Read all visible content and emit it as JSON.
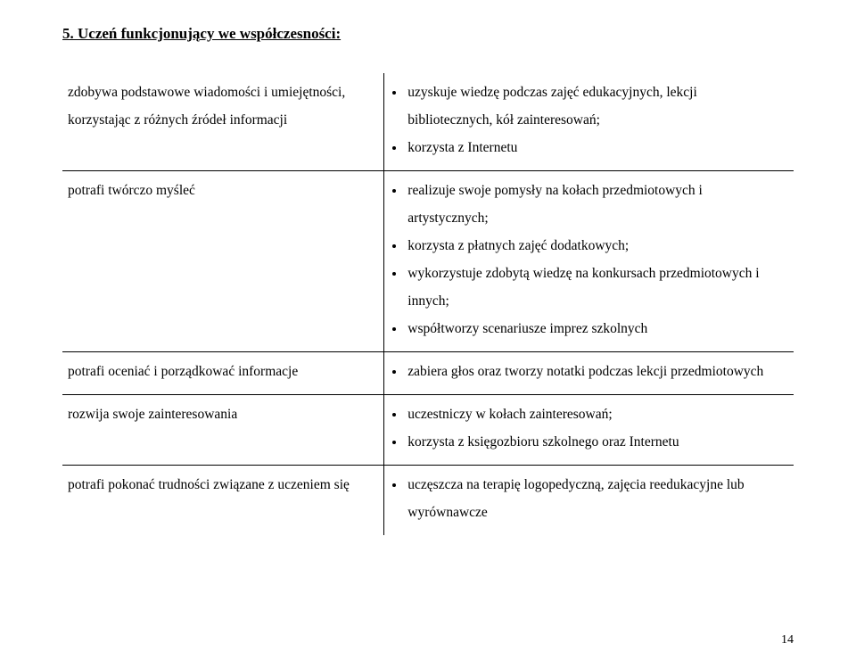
{
  "heading": "5. Uczeń funkcjonujący we współczesności:",
  "rows": [
    {
      "left": "zdobywa podstawowe wiadomości  i umiejętności, korzystając z różnych źródeł informacji",
      "bullets": [
        "uzyskuje wiedzę podczas zajęć edukacyjnych, lekcji bibliotecznych, kół zainteresowań;",
        "korzysta z Internetu"
      ]
    },
    {
      "left": "potrafi twórczo myśleć",
      "bullets": [
        "realizuje swoje pomysły na kołach przedmiotowych i artystycznych;",
        "korzysta z płatnych zajęć dodatkowych;",
        "wykorzystuje zdobytą wiedzę na konkursach przedmiotowych i innych;",
        "współtworzy scenariusze imprez szkolnych"
      ]
    },
    {
      "left": "potrafi oceniać i porządkować informacje",
      "bullets": [
        "zabiera głos oraz tworzy notatki podczas lekcji przedmiotowych"
      ]
    },
    {
      "left": "rozwija swoje zainteresowania",
      "bullets": [
        "uczestniczy w kołach zainteresowań;",
        "korzysta z księgozbioru szkolnego oraz Internetu"
      ]
    },
    {
      "left": "potrafi pokonać trudności związane z uczeniem się",
      "bullets": [
        "uczęszcza na terapię logopedyczną, zajęcia reedukacyjne lub wyrównawcze"
      ]
    }
  ],
  "page_number": "14"
}
